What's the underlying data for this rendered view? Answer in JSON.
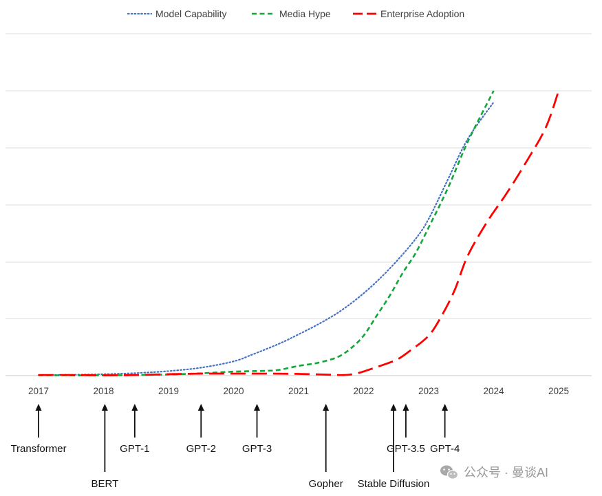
{
  "chart_data": {
    "type": "line",
    "title": "",
    "xlabel": "",
    "ylabel": "",
    "x_ticks": [
      "2017",
      "2018",
      "2019",
      "2020",
      "2021",
      "2022",
      "2023",
      "2024",
      "2025"
    ],
    "xlim": [
      2017,
      2025
    ],
    "y_axis_labels_visible": false,
    "grid": "horizontal",
    "legend_position": "top-center",
    "series": [
      {
        "name": "Model Capability",
        "color": "#4472c4",
        "style": "dotted",
        "points": [
          [
            2017,
            0.02
          ],
          [
            2017.5,
            0.03
          ],
          [
            2018,
            0.05
          ],
          [
            2018.5,
            0.09
          ],
          [
            2019,
            0.16
          ],
          [
            2019.5,
            0.28
          ],
          [
            2020,
            0.5
          ],
          [
            2020.3,
            0.75
          ],
          [
            2020.7,
            1.12
          ],
          [
            2021,
            1.45
          ],
          [
            2021.3,
            1.8
          ],
          [
            2021.6,
            2.2
          ],
          [
            2021.9,
            2.7
          ],
          [
            2022.2,
            3.3
          ],
          [
            2022.5,
            4.0
          ],
          [
            2022.8,
            4.8
          ],
          [
            2023,
            5.5
          ],
          [
            2023.3,
            6.9
          ],
          [
            2023.6,
            8.3
          ],
          [
            2024,
            9.6
          ]
        ]
      },
      {
        "name": "Media Hype",
        "color": "#13a538",
        "style": "dashed",
        "points": [
          [
            2017,
            0.01
          ],
          [
            2018,
            0.01
          ],
          [
            2018.5,
            0.02
          ],
          [
            2019,
            0.04
          ],
          [
            2019.5,
            0.08
          ],
          [
            2020,
            0.14
          ],
          [
            2020.5,
            0.17
          ],
          [
            2020.7,
            0.2
          ],
          [
            2021,
            0.34
          ],
          [
            2021.3,
            0.45
          ],
          [
            2021.6,
            0.65
          ],
          [
            2021.8,
            0.95
          ],
          [
            2022,
            1.4
          ],
          [
            2022.2,
            2.1
          ],
          [
            2022.4,
            2.8
          ],
          [
            2022.6,
            3.6
          ],
          [
            2022.8,
            4.3
          ],
          [
            2023,
            5.2
          ],
          [
            2023.3,
            6.6
          ],
          [
            2023.6,
            8.2
          ],
          [
            2024,
            10.0
          ]
        ]
      },
      {
        "name": "Enterprise Adoption",
        "color": "#ff0000",
        "style": "long-dashed",
        "points": [
          [
            2017,
            0.02
          ],
          [
            2017.5,
            0.02
          ],
          [
            2018,
            0.01
          ],
          [
            2018.5,
            0.02
          ],
          [
            2019,
            0.05
          ],
          [
            2019.5,
            0.07
          ],
          [
            2020,
            0.07
          ],
          [
            2020.5,
            0.07
          ],
          [
            2021,
            0.06
          ],
          [
            2021.5,
            0.03
          ],
          [
            2021.7,
            0.02
          ],
          [
            2021.9,
            0.08
          ],
          [
            2022.2,
            0.3
          ],
          [
            2022.5,
            0.55
          ],
          [
            2022.7,
            0.85
          ],
          [
            2023,
            1.4
          ],
          [
            2023.2,
            2.1
          ],
          [
            2023.4,
            3.0
          ],
          [
            2023.6,
            4.2
          ],
          [
            2023.9,
            5.4
          ],
          [
            2024.2,
            6.4
          ],
          [
            2024.5,
            7.5
          ],
          [
            2024.8,
            8.7
          ],
          [
            2025,
            10.0
          ]
        ]
      }
    ],
    "ylim": [
      0,
      10
    ]
  },
  "milestones": [
    {
      "label": "Transformer",
      "x": 2017.0,
      "row": "upper"
    },
    {
      "label": "BERT",
      "x": 2018.02,
      "row": "lower"
    },
    {
      "label": "GPT-1",
      "x": 2018.48,
      "row": "upper"
    },
    {
      "label": "GPT-2",
      "x": 2019.5,
      "row": "upper"
    },
    {
      "label": "GPT-3",
      "x": 2020.36,
      "row": "upper"
    },
    {
      "label": "Gopher",
      "x": 2021.42,
      "row": "lower"
    },
    {
      "label": "Stable Diffusion",
      "x": 2022.46,
      "row": "lower"
    },
    {
      "label": "GPT-3.5",
      "x": 2022.65,
      "row": "upper"
    },
    {
      "label": "GPT-4",
      "x": 2023.25,
      "row": "upper"
    }
  ],
  "watermark": {
    "text": "公众号 · 曼谈AI",
    "icon": "wechat-icon"
  }
}
